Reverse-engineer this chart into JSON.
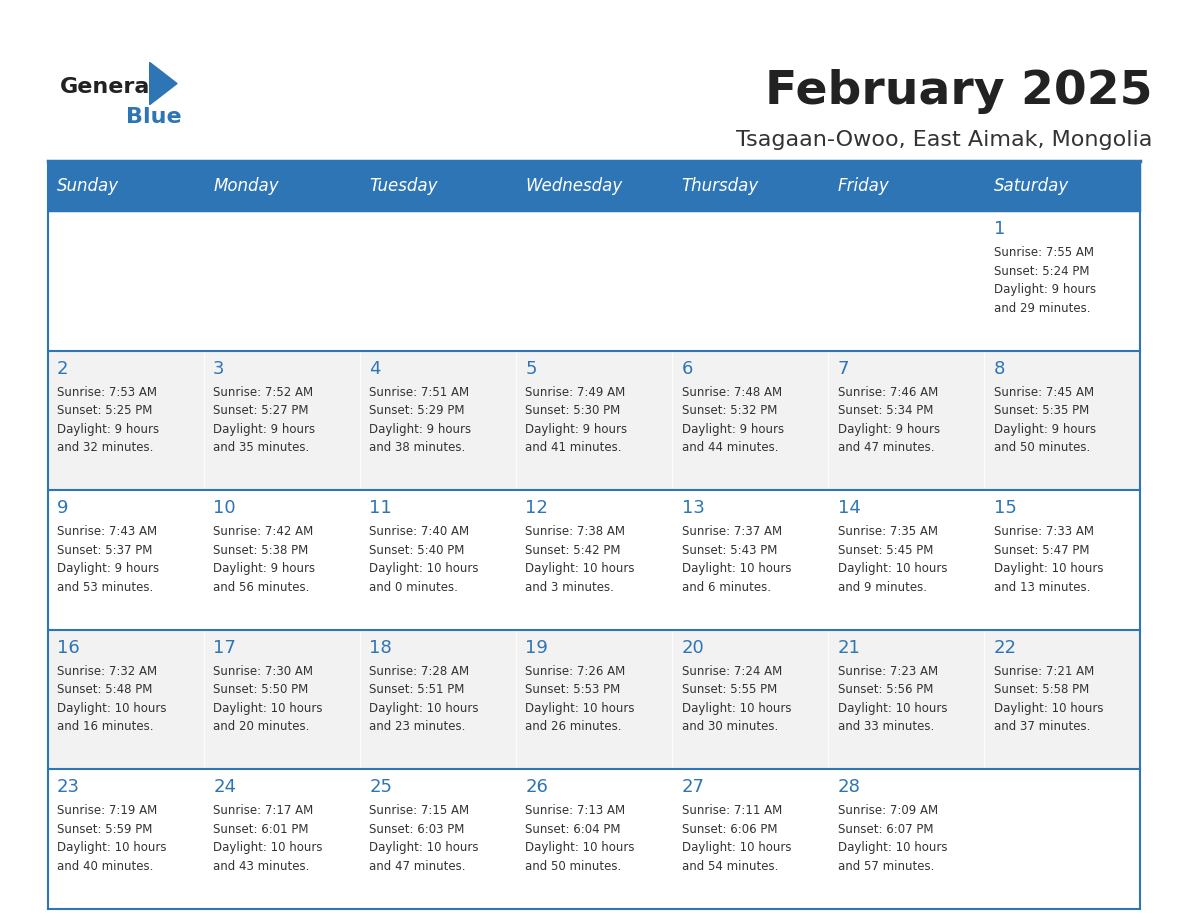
{
  "title": "February 2025",
  "subtitle": "Tsagaan-Owoo, East Aimak, Mongolia",
  "header_bg": "#2E75B6",
  "header_text_color": "#FFFFFF",
  "cell_bg_even": "#FFFFFF",
  "cell_bg_odd": "#F2F2F2",
  "day_number_color": "#2E75B6",
  "text_color": "#333333",
  "border_color": "#2E75B6",
  "days_of_week": [
    "Sunday",
    "Monday",
    "Tuesday",
    "Wednesday",
    "Thursday",
    "Friday",
    "Saturday"
  ],
  "weeks": [
    [
      {
        "day": null,
        "info": null
      },
      {
        "day": null,
        "info": null
      },
      {
        "day": null,
        "info": null
      },
      {
        "day": null,
        "info": null
      },
      {
        "day": null,
        "info": null
      },
      {
        "day": null,
        "info": null
      },
      {
        "day": "1",
        "info": "Sunrise: 7:55 AM\nSunset: 5:24 PM\nDaylight: 9 hours\nand 29 minutes."
      }
    ],
    [
      {
        "day": "2",
        "info": "Sunrise: 7:53 AM\nSunset: 5:25 PM\nDaylight: 9 hours\nand 32 minutes."
      },
      {
        "day": "3",
        "info": "Sunrise: 7:52 AM\nSunset: 5:27 PM\nDaylight: 9 hours\nand 35 minutes."
      },
      {
        "day": "4",
        "info": "Sunrise: 7:51 AM\nSunset: 5:29 PM\nDaylight: 9 hours\nand 38 minutes."
      },
      {
        "day": "5",
        "info": "Sunrise: 7:49 AM\nSunset: 5:30 PM\nDaylight: 9 hours\nand 41 minutes."
      },
      {
        "day": "6",
        "info": "Sunrise: 7:48 AM\nSunset: 5:32 PM\nDaylight: 9 hours\nand 44 minutes."
      },
      {
        "day": "7",
        "info": "Sunrise: 7:46 AM\nSunset: 5:34 PM\nDaylight: 9 hours\nand 47 minutes."
      },
      {
        "day": "8",
        "info": "Sunrise: 7:45 AM\nSunset: 5:35 PM\nDaylight: 9 hours\nand 50 minutes."
      }
    ],
    [
      {
        "day": "9",
        "info": "Sunrise: 7:43 AM\nSunset: 5:37 PM\nDaylight: 9 hours\nand 53 minutes."
      },
      {
        "day": "10",
        "info": "Sunrise: 7:42 AM\nSunset: 5:38 PM\nDaylight: 9 hours\nand 56 minutes."
      },
      {
        "day": "11",
        "info": "Sunrise: 7:40 AM\nSunset: 5:40 PM\nDaylight: 10 hours\nand 0 minutes."
      },
      {
        "day": "12",
        "info": "Sunrise: 7:38 AM\nSunset: 5:42 PM\nDaylight: 10 hours\nand 3 minutes."
      },
      {
        "day": "13",
        "info": "Sunrise: 7:37 AM\nSunset: 5:43 PM\nDaylight: 10 hours\nand 6 minutes."
      },
      {
        "day": "14",
        "info": "Sunrise: 7:35 AM\nSunset: 5:45 PM\nDaylight: 10 hours\nand 9 minutes."
      },
      {
        "day": "15",
        "info": "Sunrise: 7:33 AM\nSunset: 5:47 PM\nDaylight: 10 hours\nand 13 minutes."
      }
    ],
    [
      {
        "day": "16",
        "info": "Sunrise: 7:32 AM\nSunset: 5:48 PM\nDaylight: 10 hours\nand 16 minutes."
      },
      {
        "day": "17",
        "info": "Sunrise: 7:30 AM\nSunset: 5:50 PM\nDaylight: 10 hours\nand 20 minutes."
      },
      {
        "day": "18",
        "info": "Sunrise: 7:28 AM\nSunset: 5:51 PM\nDaylight: 10 hours\nand 23 minutes."
      },
      {
        "day": "19",
        "info": "Sunrise: 7:26 AM\nSunset: 5:53 PM\nDaylight: 10 hours\nand 26 minutes."
      },
      {
        "day": "20",
        "info": "Sunrise: 7:24 AM\nSunset: 5:55 PM\nDaylight: 10 hours\nand 30 minutes."
      },
      {
        "day": "21",
        "info": "Sunrise: 7:23 AM\nSunset: 5:56 PM\nDaylight: 10 hours\nand 33 minutes."
      },
      {
        "day": "22",
        "info": "Sunrise: 7:21 AM\nSunset: 5:58 PM\nDaylight: 10 hours\nand 37 minutes."
      }
    ],
    [
      {
        "day": "23",
        "info": "Sunrise: 7:19 AM\nSunset: 5:59 PM\nDaylight: 10 hours\nand 40 minutes."
      },
      {
        "day": "24",
        "info": "Sunrise: 7:17 AM\nSunset: 6:01 PM\nDaylight: 10 hours\nand 43 minutes."
      },
      {
        "day": "25",
        "info": "Sunrise: 7:15 AM\nSunset: 6:03 PM\nDaylight: 10 hours\nand 47 minutes."
      },
      {
        "day": "26",
        "info": "Sunrise: 7:13 AM\nSunset: 6:04 PM\nDaylight: 10 hours\nand 50 minutes."
      },
      {
        "day": "27",
        "info": "Sunrise: 7:11 AM\nSunset: 6:06 PM\nDaylight: 10 hours\nand 54 minutes."
      },
      {
        "day": "28",
        "info": "Sunrise: 7:09 AM\nSunset: 6:07 PM\nDaylight: 10 hours\nand 57 minutes."
      },
      {
        "day": null,
        "info": null
      }
    ]
  ]
}
